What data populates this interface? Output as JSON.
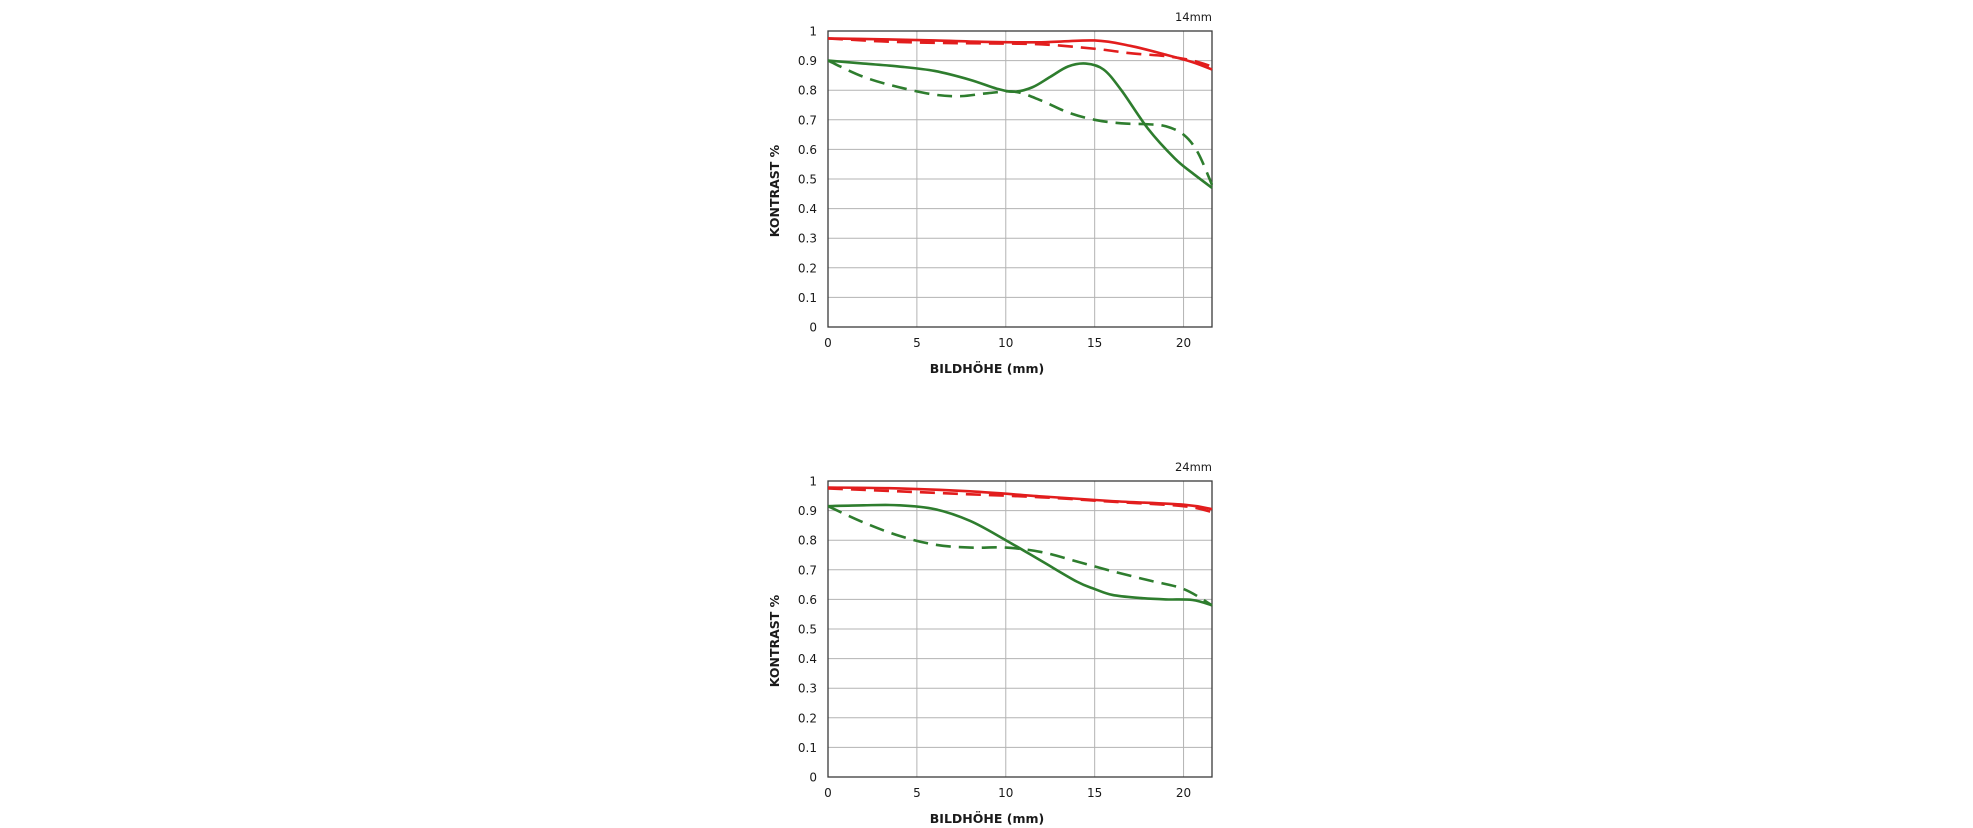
{
  "chart_data": [
    {
      "type": "line",
      "title": "14mm",
      "xlabel": "BILDHÖHE (mm)",
      "ylabel": "KONTRAST %",
      "xlim": [
        0,
        21.6
      ],
      "ylim": [
        0,
        1
      ],
      "xticks": [
        "0",
        "5",
        "10",
        "15",
        "20"
      ],
      "yticks": [
        "0",
        "0.1",
        "0.2",
        "0.3",
        "0.4",
        "0.5",
        "0.6",
        "0.7",
        "0.8",
        "0.9",
        "1"
      ],
      "grid": true,
      "series": [
        {
          "color": "#e21d1d",
          "dash": false,
          "x": [
            0,
            3,
            6,
            9,
            12,
            15,
            17,
            19,
            20.5,
            21.6
          ],
          "y": [
            0.975,
            0.972,
            0.968,
            0.963,
            0.962,
            0.968,
            0.95,
            0.92,
            0.895,
            0.87
          ]
        },
        {
          "color": "#e21d1d",
          "dash": true,
          "x": [
            0,
            3,
            6,
            9,
            12,
            15,
            17,
            19,
            20.5,
            21.6
          ],
          "y": [
            0.975,
            0.965,
            0.96,
            0.958,
            0.955,
            0.94,
            0.925,
            0.915,
            0.9,
            0.88
          ]
        },
        {
          "color": "#2e7d2e",
          "dash": false,
          "x": [
            0,
            2,
            4,
            6,
            8,
            9.5,
            10.5,
            11.5,
            12.5,
            13.5,
            14.5,
            15.5,
            16.5,
            18,
            19.5,
            20.5,
            21.6
          ],
          "y": [
            0.9,
            0.89,
            0.88,
            0.865,
            0.835,
            0.805,
            0.795,
            0.81,
            0.845,
            0.88,
            0.89,
            0.87,
            0.8,
            0.67,
            0.57,
            0.52,
            0.47
          ]
        },
        {
          "color": "#2e7d2e",
          "dash": true,
          "x": [
            0,
            2,
            4,
            6,
            7.5,
            9,
            10.5,
            12,
            13.5,
            15,
            16.5,
            18,
            19,
            20,
            20.8,
            21.6
          ],
          "y": [
            0.9,
            0.845,
            0.81,
            0.785,
            0.78,
            0.79,
            0.795,
            0.765,
            0.725,
            0.7,
            0.688,
            0.685,
            0.678,
            0.65,
            0.59,
            0.48
          ]
        }
      ]
    },
    {
      "type": "line",
      "title": "24mm",
      "xlabel": "BILDHÖHE (mm)",
      "ylabel": "KONTRAST %",
      "xlim": [
        0,
        21.6
      ],
      "ylim": [
        0,
        1
      ],
      "xticks": [
        "0",
        "5",
        "10",
        "15",
        "20"
      ],
      "yticks": [
        "0",
        "0.1",
        "0.2",
        "0.3",
        "0.4",
        "0.5",
        "0.6",
        "0.7",
        "0.8",
        "0.9",
        "1"
      ],
      "grid": true,
      "series": [
        {
          "color": "#e21d1d",
          "dash": false,
          "x": [
            0,
            4,
            8,
            12,
            16,
            20,
            21.6
          ],
          "y": [
            0.978,
            0.975,
            0.965,
            0.948,
            0.932,
            0.92,
            0.905
          ]
        },
        {
          "color": "#e21d1d",
          "dash": true,
          "x": [
            0,
            4,
            8,
            12,
            16,
            20,
            21.6
          ],
          "y": [
            0.975,
            0.965,
            0.955,
            0.945,
            0.93,
            0.915,
            0.895
          ]
        },
        {
          "color": "#2e7d2e",
          "dash": false,
          "x": [
            0,
            2,
            4,
            6,
            8,
            10,
            12,
            14,
            15,
            16,
            17.5,
            19,
            20.5,
            21.6
          ],
          "y": [
            0.915,
            0.918,
            0.918,
            0.905,
            0.865,
            0.8,
            0.73,
            0.66,
            0.635,
            0.615,
            0.605,
            0.6,
            0.598,
            0.58
          ]
        },
        {
          "color": "#2e7d2e",
          "dash": true,
          "x": [
            0,
            2,
            4,
            6,
            8,
            10,
            12,
            14,
            16,
            18,
            20,
            21.6
          ],
          "y": [
            0.915,
            0.86,
            0.815,
            0.785,
            0.775,
            0.775,
            0.76,
            0.728,
            0.695,
            0.665,
            0.635,
            0.58
          ]
        }
      ]
    }
  ]
}
